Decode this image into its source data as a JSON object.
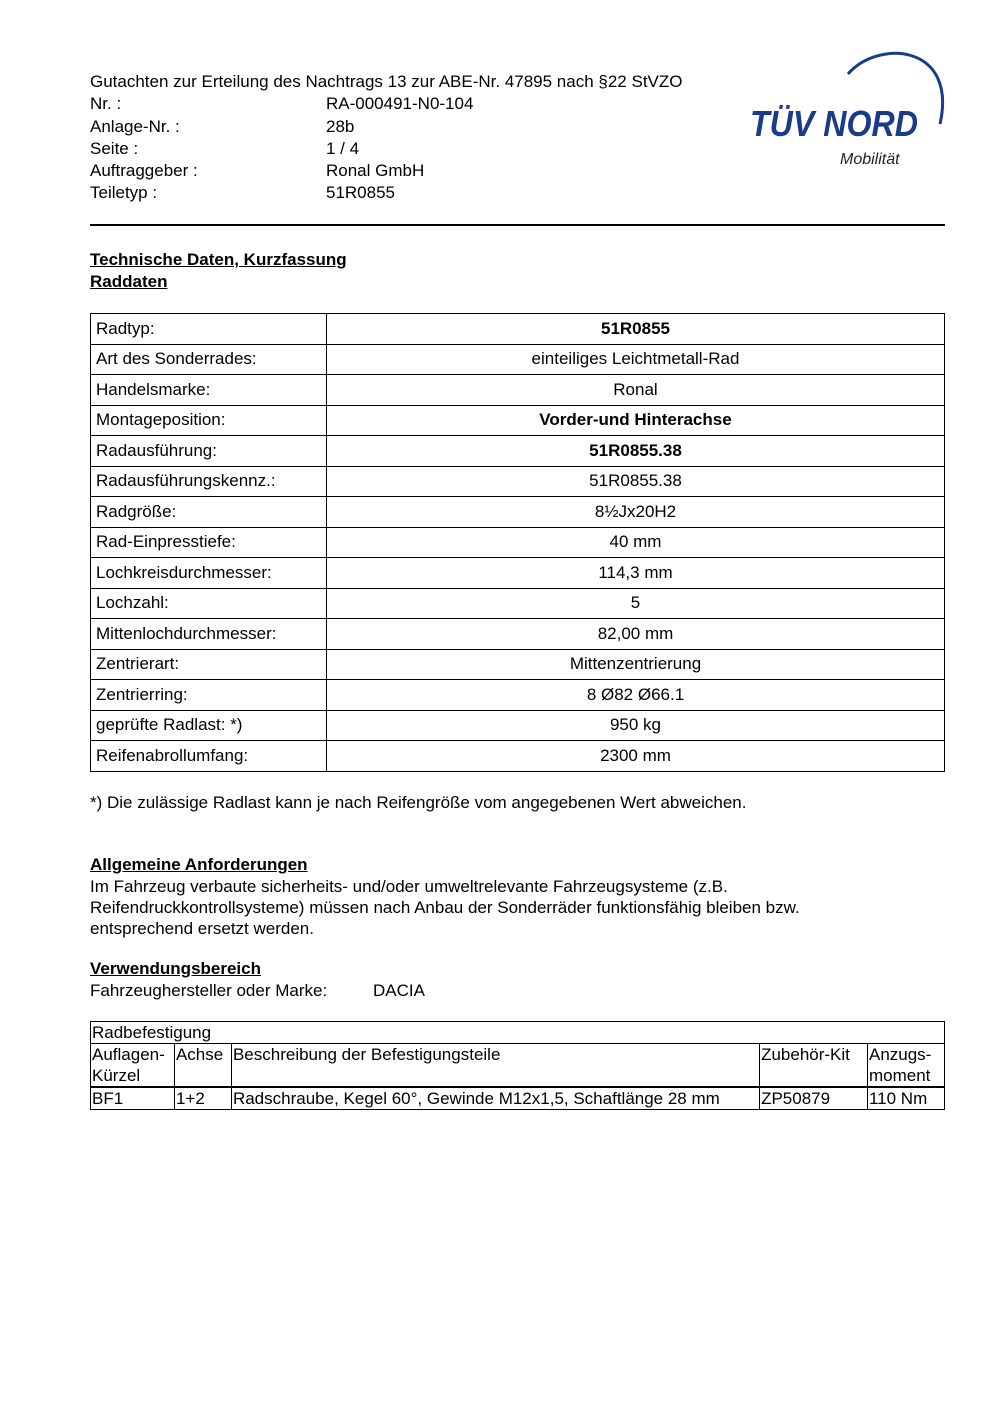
{
  "header": {
    "title": "Gutachten zur Erteilung des Nachtrags 13 zur ABE-Nr. 47895 nach §22 StVZO",
    "fields": [
      {
        "label": "Nr. :",
        "value": "RA-000491-N0-104"
      },
      {
        "label": "Anlage-Nr. :",
        "value": "28b"
      },
      {
        "label": "Seite :",
        "value": "1 / 4"
      },
      {
        "label": "Auftraggeber :",
        "value": "Ronal GmbH"
      },
      {
        "label": "Teiletyp :",
        "value": "51R0855"
      }
    ]
  },
  "logo": {
    "brand": "TÜV NORD",
    "subtitle": "Mobilität",
    "color": "#1a3a8a"
  },
  "section1": {
    "title": "Technische Daten, Kurzfassung",
    "subtitle": "Raddaten"
  },
  "raddaten": [
    {
      "label": "Radtyp:",
      "value": "51R0855",
      "bold": true
    },
    {
      "label": "Art des Sonderrades:",
      "value": "einteiliges Leichtmetall-Rad"
    },
    {
      "label": "Handelsmarke:",
      "value": "Ronal"
    },
    {
      "label": "Montageposition:",
      "value": "Vorder-und Hinterachse",
      "bold": true
    },
    {
      "label": "Radausführung:",
      "value": "51R0855.38",
      "bold": true
    },
    {
      "label": "Radausführungskennz.:",
      "value": "51R0855.38"
    },
    {
      "label": "Radgröße:",
      "value": "8½Jx20H2"
    },
    {
      "label": "Rad-Einpresstiefe:",
      "value": "40 mm"
    },
    {
      "label": "Lochkreisdurchmesser:",
      "value": "114,3 mm"
    },
    {
      "label": "Lochzahl:",
      "value": "5"
    },
    {
      "label": "Mittenlochdurchmesser:",
      "value": "82,00 mm"
    },
    {
      "label": "Zentrierart:",
      "value": "Mittenzentrierung"
    },
    {
      "label": "Zentrierring:",
      "value": "8  Ø82  Ø66.1"
    },
    {
      "label": "geprüfte Radlast: *)",
      "value": "950 kg"
    },
    {
      "label": "Reifenabrollumfang:",
      "value": "2300 mm"
    }
  ],
  "footnote": "*) Die zulässige Radlast kann je nach Reifengröße vom angegebenen Wert abweichen.",
  "anforderungen": {
    "title": "Allgemeine Anforderungen",
    "lines": [
      "Im Fahrzeug verbaute sicherheits- und/oder umweltrelevante Fahrzeugsysteme (z.B.",
      "Reifendruckkontrollsysteme) müssen nach Anbau der Sonderräder funktionsfähig bleiben bzw.",
      "entsprechend ersetzt werden."
    ]
  },
  "verwendung": {
    "title": "Verwendungsbereich",
    "label": "Fahrzeughersteller oder Marke:",
    "value": "DACIA"
  },
  "radbefestigung": {
    "title": "Radbefestigung",
    "headers": [
      [
        "Auflagen-",
        "Kürzel"
      ],
      [
        "Achse"
      ],
      [
        "Beschreibung der Befestigungsteile"
      ],
      [
        "Zubehör-Kit"
      ],
      [
        "Anzugs-",
        "moment"
      ]
    ],
    "rows": [
      [
        "BF1",
        "1+2",
        "Radschraube, Kegel 60°, Gewinde M12x1,5, Schaftlänge 28 mm",
        "ZP50879",
        "110 Nm"
      ]
    ]
  }
}
